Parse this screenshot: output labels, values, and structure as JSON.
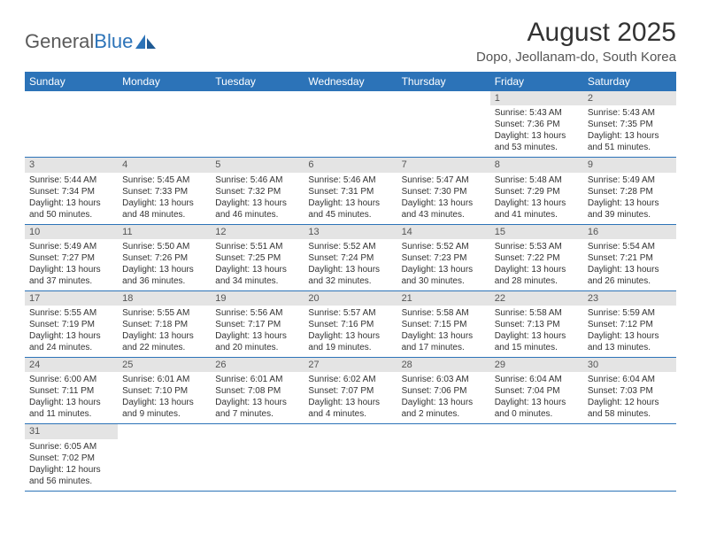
{
  "brand": {
    "name1": "General",
    "name2": "Blue"
  },
  "title": "August 2025",
  "location": "Dopo, Jeollanam-do, South Korea",
  "colors": {
    "header_bg": "#2c73b8",
    "daynum_bg": "#e4e4e4",
    "border": "#2c73b8",
    "text": "#333333"
  },
  "weekdays": [
    "Sunday",
    "Monday",
    "Tuesday",
    "Wednesday",
    "Thursday",
    "Friday",
    "Saturday"
  ],
  "weeks": [
    [
      null,
      null,
      null,
      null,
      null,
      {
        "n": "1",
        "sr": "5:43 AM",
        "ss": "7:36 PM",
        "dl": "13 hours and 53 minutes."
      },
      {
        "n": "2",
        "sr": "5:43 AM",
        "ss": "7:35 PM",
        "dl": "13 hours and 51 minutes."
      }
    ],
    [
      {
        "n": "3",
        "sr": "5:44 AM",
        "ss": "7:34 PM",
        "dl": "13 hours and 50 minutes."
      },
      {
        "n": "4",
        "sr": "5:45 AM",
        "ss": "7:33 PM",
        "dl": "13 hours and 48 minutes."
      },
      {
        "n": "5",
        "sr": "5:46 AM",
        "ss": "7:32 PM",
        "dl": "13 hours and 46 minutes."
      },
      {
        "n": "6",
        "sr": "5:46 AM",
        "ss": "7:31 PM",
        "dl": "13 hours and 45 minutes."
      },
      {
        "n": "7",
        "sr": "5:47 AM",
        "ss": "7:30 PM",
        "dl": "13 hours and 43 minutes."
      },
      {
        "n": "8",
        "sr": "5:48 AM",
        "ss": "7:29 PM",
        "dl": "13 hours and 41 minutes."
      },
      {
        "n": "9",
        "sr": "5:49 AM",
        "ss": "7:28 PM",
        "dl": "13 hours and 39 minutes."
      }
    ],
    [
      {
        "n": "10",
        "sr": "5:49 AM",
        "ss": "7:27 PM",
        "dl": "13 hours and 37 minutes."
      },
      {
        "n": "11",
        "sr": "5:50 AM",
        "ss": "7:26 PM",
        "dl": "13 hours and 36 minutes."
      },
      {
        "n": "12",
        "sr": "5:51 AM",
        "ss": "7:25 PM",
        "dl": "13 hours and 34 minutes."
      },
      {
        "n": "13",
        "sr": "5:52 AM",
        "ss": "7:24 PM",
        "dl": "13 hours and 32 minutes."
      },
      {
        "n": "14",
        "sr": "5:52 AM",
        "ss": "7:23 PM",
        "dl": "13 hours and 30 minutes."
      },
      {
        "n": "15",
        "sr": "5:53 AM",
        "ss": "7:22 PM",
        "dl": "13 hours and 28 minutes."
      },
      {
        "n": "16",
        "sr": "5:54 AM",
        "ss": "7:21 PM",
        "dl": "13 hours and 26 minutes."
      }
    ],
    [
      {
        "n": "17",
        "sr": "5:55 AM",
        "ss": "7:19 PM",
        "dl": "13 hours and 24 minutes."
      },
      {
        "n": "18",
        "sr": "5:55 AM",
        "ss": "7:18 PM",
        "dl": "13 hours and 22 minutes."
      },
      {
        "n": "19",
        "sr": "5:56 AM",
        "ss": "7:17 PM",
        "dl": "13 hours and 20 minutes."
      },
      {
        "n": "20",
        "sr": "5:57 AM",
        "ss": "7:16 PM",
        "dl": "13 hours and 19 minutes."
      },
      {
        "n": "21",
        "sr": "5:58 AM",
        "ss": "7:15 PM",
        "dl": "13 hours and 17 minutes."
      },
      {
        "n": "22",
        "sr": "5:58 AM",
        "ss": "7:13 PM",
        "dl": "13 hours and 15 minutes."
      },
      {
        "n": "23",
        "sr": "5:59 AM",
        "ss": "7:12 PM",
        "dl": "13 hours and 13 minutes."
      }
    ],
    [
      {
        "n": "24",
        "sr": "6:00 AM",
        "ss": "7:11 PM",
        "dl": "13 hours and 11 minutes."
      },
      {
        "n": "25",
        "sr": "6:01 AM",
        "ss": "7:10 PM",
        "dl": "13 hours and 9 minutes."
      },
      {
        "n": "26",
        "sr": "6:01 AM",
        "ss": "7:08 PM",
        "dl": "13 hours and 7 minutes."
      },
      {
        "n": "27",
        "sr": "6:02 AM",
        "ss": "7:07 PM",
        "dl": "13 hours and 4 minutes."
      },
      {
        "n": "28",
        "sr": "6:03 AM",
        "ss": "7:06 PM",
        "dl": "13 hours and 2 minutes."
      },
      {
        "n": "29",
        "sr": "6:04 AM",
        "ss": "7:04 PM",
        "dl": "13 hours and 0 minutes."
      },
      {
        "n": "30",
        "sr": "6:04 AM",
        "ss": "7:03 PM",
        "dl": "12 hours and 58 minutes."
      }
    ],
    [
      {
        "n": "31",
        "sr": "6:05 AM",
        "ss": "7:02 PM",
        "dl": "12 hours and 56 minutes."
      },
      null,
      null,
      null,
      null,
      null,
      null
    ]
  ],
  "labels": {
    "sunrise": "Sunrise: ",
    "sunset": "Sunset: ",
    "daylight": "Daylight: "
  }
}
